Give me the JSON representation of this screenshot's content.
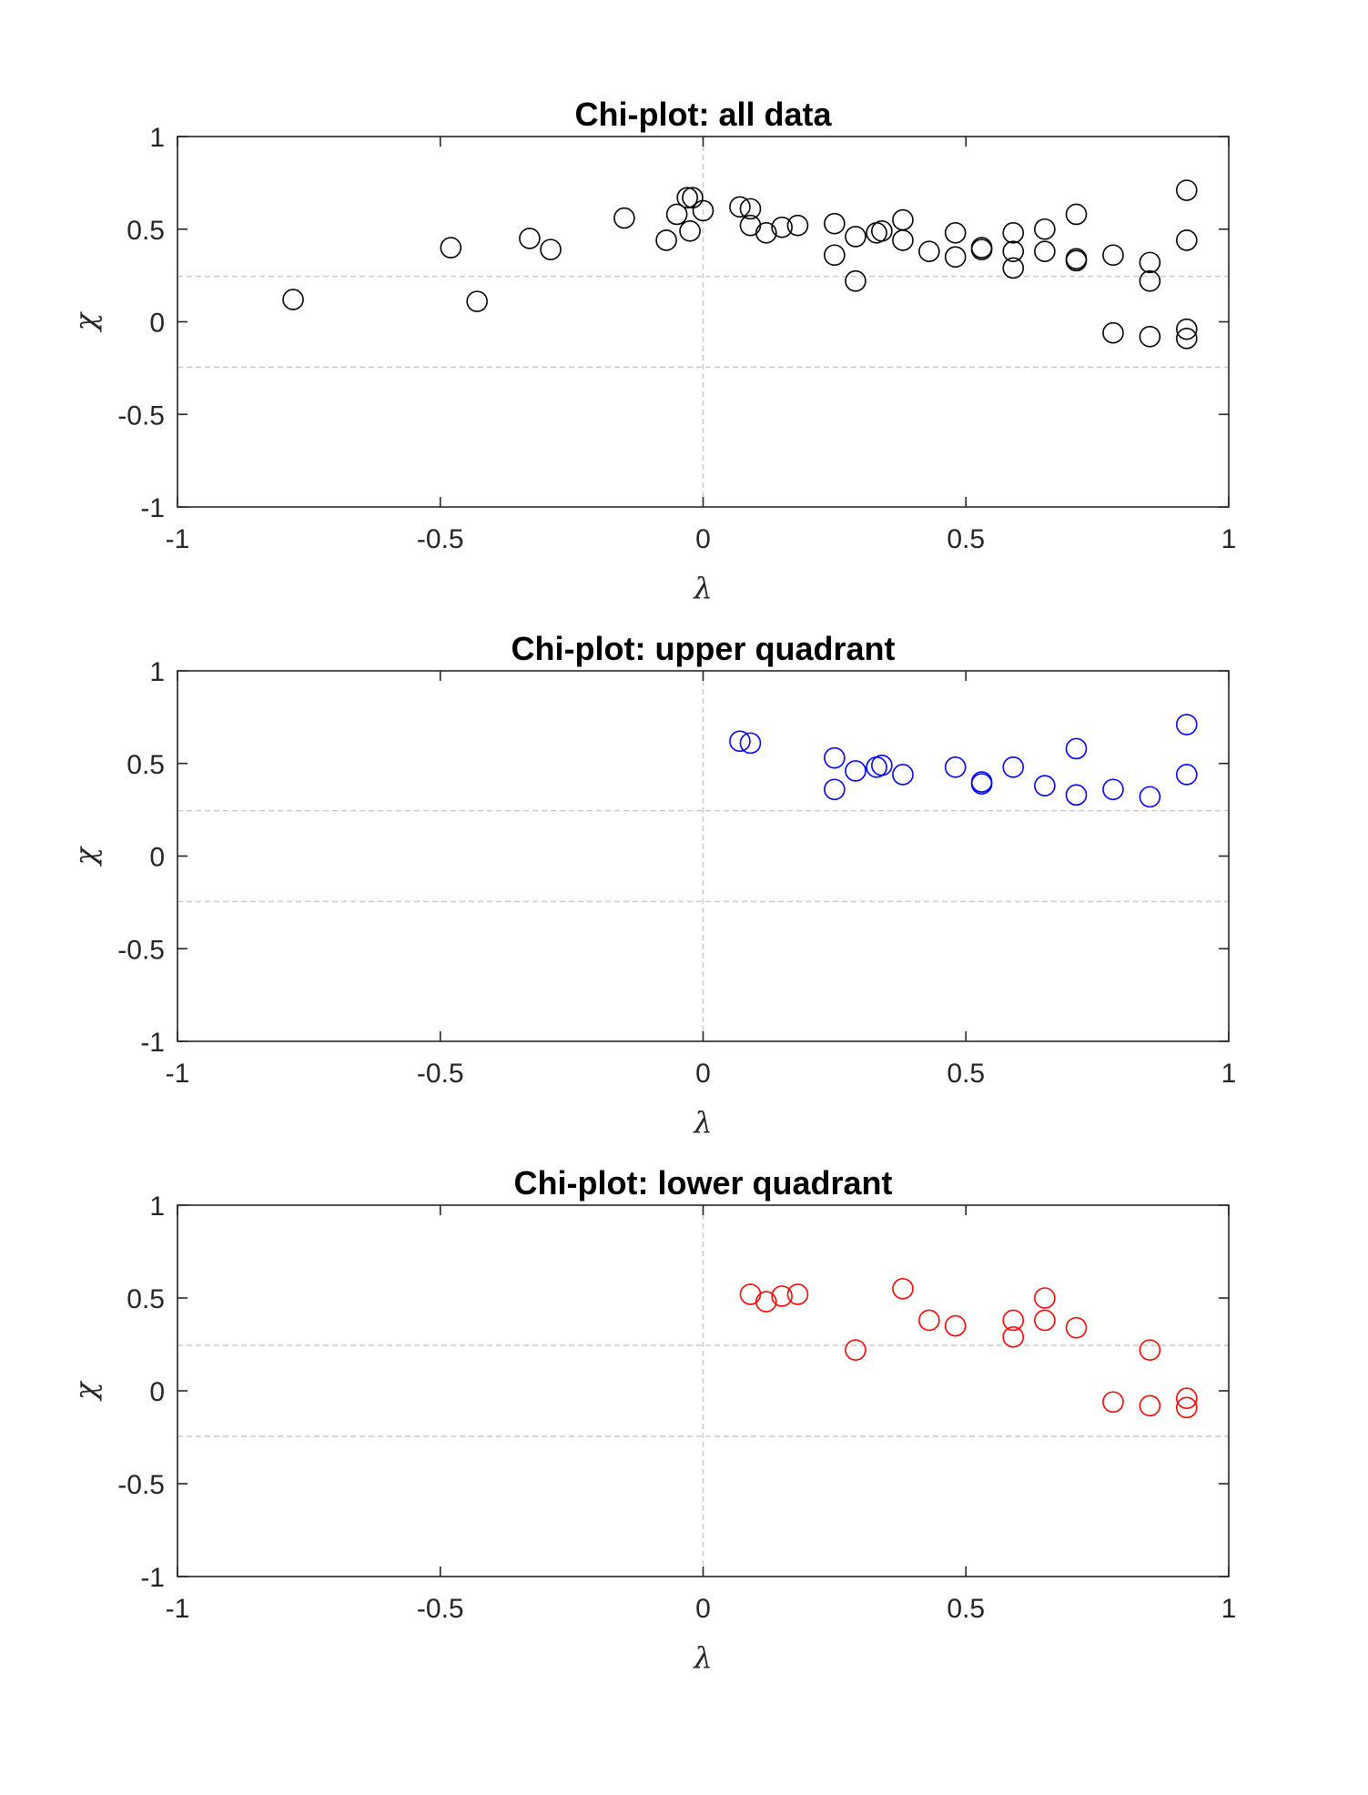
{
  "colors": {
    "background": "#ffffff",
    "axes": "#262626",
    "reference_line": "#cccccc",
    "all_data": "#000000",
    "upper_quadrant": "#0000ff",
    "lower_quadrant": "#ff0000"
  },
  "chart_data": [
    {
      "type": "scatter",
      "title": "Chi-plot: all data",
      "xlabel": "λ",
      "ylabel": "χ",
      "xlim": [
        -1,
        1
      ],
      "ylim": [
        -1,
        1
      ],
      "xticks": [
        "-1",
        "-0.5",
        "0",
        "0.5",
        "1"
      ],
      "yticks": [
        "-1",
        "-0.5",
        "0",
        "0.5",
        "1"
      ],
      "grid": false,
      "marker": "open-circle",
      "color": "#000000",
      "reference_lines": {
        "x": [
          0
        ],
        "y": [
          0.245,
          -0.245
        ]
      },
      "points": [
        [
          -0.78,
          0.12
        ],
        [
          -0.48,
          0.4
        ],
        [
          -0.43,
          0.11
        ],
        [
          -0.33,
          0.45
        ],
        [
          -0.29,
          0.39
        ],
        [
          -0.15,
          0.56
        ],
        [
          -0.07,
          0.44
        ],
        [
          -0.05,
          0.58
        ],
        [
          -0.03,
          0.67
        ],
        [
          -0.02,
          0.67
        ],
        [
          -0.025,
          0.49
        ],
        [
          0.0,
          0.6
        ],
        [
          0.07,
          0.62
        ],
        [
          0.09,
          0.61
        ],
        [
          0.09,
          0.52
        ],
        [
          0.12,
          0.48
        ],
        [
          0.15,
          0.51
        ],
        [
          0.18,
          0.52
        ],
        [
          0.25,
          0.53
        ],
        [
          0.25,
          0.36
        ],
        [
          0.29,
          0.46
        ],
        [
          0.29,
          0.22
        ],
        [
          0.33,
          0.48
        ],
        [
          0.34,
          0.49
        ],
        [
          0.38,
          0.55
        ],
        [
          0.38,
          0.44
        ],
        [
          0.43,
          0.38
        ],
        [
          0.48,
          0.48
        ],
        [
          0.48,
          0.35
        ],
        [
          0.53,
          0.4
        ],
        [
          0.53,
          0.39
        ],
        [
          0.59,
          0.48
        ],
        [
          0.59,
          0.38
        ],
        [
          0.59,
          0.29
        ],
        [
          0.65,
          0.5
        ],
        [
          0.65,
          0.38
        ],
        [
          0.71,
          0.58
        ],
        [
          0.71,
          0.34
        ],
        [
          0.71,
          0.33
        ],
        [
          0.78,
          0.36
        ],
        [
          0.78,
          -0.06
        ],
        [
          0.85,
          0.32
        ],
        [
          0.85,
          0.22
        ],
        [
          0.85,
          -0.08
        ],
        [
          0.92,
          0.71
        ],
        [
          0.92,
          0.44
        ],
        [
          0.92,
          -0.04
        ],
        [
          0.92,
          -0.09
        ]
      ]
    },
    {
      "type": "scatter",
      "title": "Chi-plot: upper quadrant",
      "xlabel": "λ",
      "ylabel": "χ",
      "xlim": [
        -1,
        1
      ],
      "ylim": [
        -1,
        1
      ],
      "xticks": [
        "-1",
        "-0.5",
        "0",
        "0.5",
        "1"
      ],
      "yticks": [
        "-1",
        "-0.5",
        "0",
        "0.5",
        "1"
      ],
      "grid": false,
      "marker": "open-circle",
      "color": "#0000ff",
      "reference_lines": {
        "x": [
          0
        ],
        "y": [
          0.245,
          -0.245
        ]
      },
      "points": [
        [
          0.07,
          0.62
        ],
        [
          0.09,
          0.61
        ],
        [
          0.25,
          0.53
        ],
        [
          0.25,
          0.36
        ],
        [
          0.29,
          0.46
        ],
        [
          0.33,
          0.48
        ],
        [
          0.34,
          0.49
        ],
        [
          0.38,
          0.44
        ],
        [
          0.48,
          0.48
        ],
        [
          0.53,
          0.4
        ],
        [
          0.53,
          0.39
        ],
        [
          0.59,
          0.48
        ],
        [
          0.65,
          0.38
        ],
        [
          0.71,
          0.58
        ],
        [
          0.71,
          0.33
        ],
        [
          0.78,
          0.36
        ],
        [
          0.85,
          0.32
        ],
        [
          0.92,
          0.71
        ],
        [
          0.92,
          0.44
        ]
      ]
    },
    {
      "type": "scatter",
      "title": "Chi-plot: lower quadrant",
      "xlabel": "λ",
      "ylabel": "χ",
      "xlim": [
        -1,
        1
      ],
      "ylim": [
        -1,
        1
      ],
      "xticks": [
        "-1",
        "-0.5",
        "0",
        "0.5",
        "1"
      ],
      "yticks": [
        "-1",
        "-0.5",
        "0",
        "0.5",
        "1"
      ],
      "grid": false,
      "marker": "open-circle",
      "color": "#ff0000",
      "reference_lines": {
        "x": [
          0
        ],
        "y": [
          0.245,
          -0.245
        ]
      },
      "points": [
        [
          0.09,
          0.52
        ],
        [
          0.12,
          0.48
        ],
        [
          0.15,
          0.51
        ],
        [
          0.18,
          0.52
        ],
        [
          0.29,
          0.22
        ],
        [
          0.38,
          0.55
        ],
        [
          0.43,
          0.38
        ],
        [
          0.48,
          0.35
        ],
        [
          0.59,
          0.38
        ],
        [
          0.59,
          0.29
        ],
        [
          0.65,
          0.5
        ],
        [
          0.65,
          0.38
        ],
        [
          0.71,
          0.34
        ],
        [
          0.78,
          -0.06
        ],
        [
          0.85,
          0.22
        ],
        [
          0.85,
          -0.08
        ],
        [
          0.92,
          -0.04
        ],
        [
          0.92,
          -0.09
        ]
      ]
    }
  ]
}
